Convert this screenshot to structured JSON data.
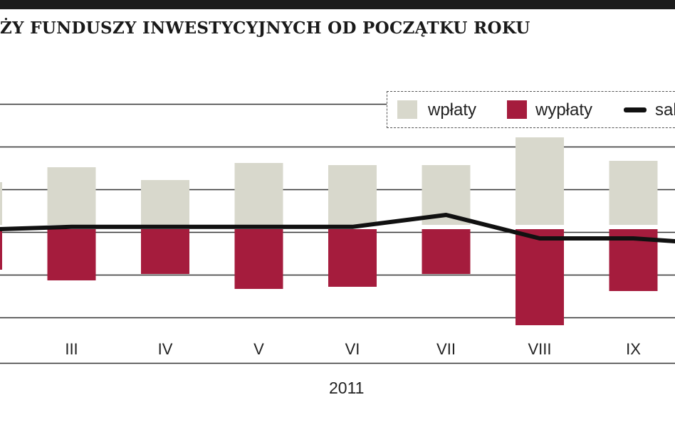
{
  "title": "ŻY FUNDUSZY INWESTYCYJNYCH OD POCZĄTKU ROKU",
  "colors": {
    "wplaty": "#d8d8cc",
    "wyplaty": "#a51c3d",
    "saldo": "#111111",
    "grid": "#333333",
    "topbar": "#1c1c1c"
  },
  "legend": {
    "wplaty": "wpłaty",
    "wyplaty": "wypłaty",
    "saldo": "sal"
  },
  "year": "2011",
  "chart_data": {
    "type": "bar",
    "categories": [
      "",
      "III",
      "IV",
      "V",
      "VI",
      "VII",
      "VIII",
      "IX",
      ""
    ],
    "series": [
      {
        "name": "wpłaty",
        "type": "bar",
        "values": [
          1.0,
          1.35,
          1.05,
          1.45,
          1.4,
          1.4,
          2.05,
          1.5,
          null
        ]
      },
      {
        "name": "wypłaty",
        "type": "bar",
        "values": [
          -0.95,
          -1.2,
          -1.05,
          -1.4,
          -1.35,
          -1.05,
          -2.25,
          -1.45,
          null
        ]
      },
      {
        "name": "saldo",
        "type": "line",
        "values": [
          0.05,
          0.12,
          0.12,
          0.12,
          0.12,
          0.4,
          -0.15,
          -0.15,
          -0.3
        ]
      }
    ],
    "ylim": [
      -3.1,
      3.6
    ],
    "grid": true,
    "legend_position": "top-right",
    "xlabel": "2011",
    "ylabel": ""
  }
}
